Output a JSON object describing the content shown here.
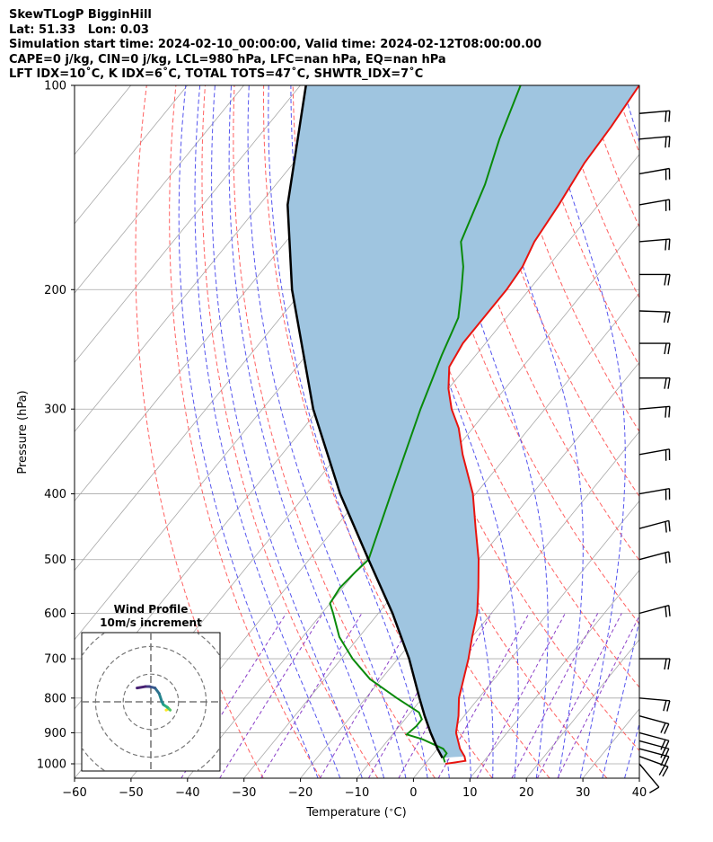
{
  "header": {
    "line1": "SkewTLogP BigginHill",
    "line2": "Lat: 51.33   Lon: 0.03",
    "line3": "Simulation start time: 2024-02-10_00:00:00, Valid time: 2024-02-12T08:00:00.00",
    "line4": "CAPE=0 j/kg, CIN=0 j/kg, LCL=980 hPa, LFC=nan hPa, EQ=nan hPa",
    "line5": "LFT IDX=10$^\\circ$C, K IDX=6$^\\circ$C, TOTAL TOTS=47$^\\circ$C, SHWTR_IDX=7$^\\circ$C"
  },
  "header_display": {
    "line5": "LFT IDX=10˚C, K IDX=6˚C, TOTAL TOTS=47˚C, SHWTR_IDX=7˚C"
  },
  "colors": {
    "temperature": "#e8140f",
    "dewpoint": "#0a8a0a",
    "parcel": "#000000",
    "fill": "#9fc5e0",
    "dry_adiabat": "#ff6060",
    "moist_adiabat": "#5555ee",
    "mixing_ratio": "#8b3fc8",
    "isotherm": "#a8a8a8"
  },
  "chart_data": {
    "type": "line",
    "title": "SkewTLogP BigginHill",
    "xlabel": "Temperature ($^\\circ$C)",
    "ylabel": "Pressure (hPa)",
    "xlim": [
      -60,
      40
    ],
    "ylim": [
      1050,
      100
    ],
    "x_ticks": [
      -60,
      -50,
      -40,
      -30,
      -20,
      -10,
      0,
      10,
      20,
      30,
      40
    ],
    "y_ticks": [
      100,
      200,
      300,
      400,
      500,
      600,
      700,
      800,
      900,
      1000
    ],
    "y_scale": "log",
    "grid": true,
    "series": [
      {
        "key": "temperature",
        "points": [
          [
            1000,
            3.6
          ],
          [
            990,
            6.7
          ],
          [
            975,
            5.9
          ],
          [
            950,
            4.0
          ],
          [
            900,
            1.0
          ],
          [
            850,
            -1.0
          ],
          [
            800,
            -3.5
          ],
          [
            700,
            -7.5
          ],
          [
            650,
            -10.0
          ],
          [
            600,
            -12.5
          ],
          [
            550,
            -16.0
          ],
          [
            500,
            -20.0
          ],
          [
            450,
            -25.0
          ],
          [
            400,
            -30.5
          ],
          [
            350,
            -38.0
          ],
          [
            320,
            -42.5
          ],
          [
            300,
            -46.5
          ],
          [
            280,
            -50.0
          ],
          [
            260,
            -53.0
          ],
          [
            240,
            -54.0
          ],
          [
            220,
            -54.0
          ],
          [
            200,
            -54.0
          ],
          [
            185,
            -54.5
          ],
          [
            170,
            -56.0
          ],
          [
            150,
            -57.0
          ],
          [
            130,
            -58.5
          ],
          [
            115,
            -59.0
          ],
          [
            100,
            -60.0
          ]
        ]
      },
      {
        "key": "dewpoint",
        "points": [
          [
            995,
            3.3
          ],
          [
            980,
            2.4
          ],
          [
            965,
            2.3
          ],
          [
            950,
            1.0
          ],
          [
            920,
            -4.0
          ],
          [
            905,
            -7.5
          ],
          [
            880,
            -7.0
          ],
          [
            860,
            -7.0
          ],
          [
            840,
            -8.5
          ],
          [
            800,
            -14.5
          ],
          [
            750,
            -22.0
          ],
          [
            700,
            -28.0
          ],
          [
            650,
            -33.5
          ],
          [
            600,
            -38.0
          ],
          [
            580,
            -40.0
          ],
          [
            550,
            -40.5
          ],
          [
            520,
            -40.0
          ],
          [
            500,
            -39.5
          ],
          [
            400,
            -45.0
          ],
          [
            300,
            -52.0
          ],
          [
            250,
            -56.0
          ],
          [
            220,
            -58.5
          ],
          [
            200,
            -62.0
          ],
          [
            185,
            -65.0
          ],
          [
            170,
            -69.0
          ],
          [
            140,
            -73.0
          ],
          [
            120,
            -77.0
          ],
          [
            100,
            -81.0
          ]
        ]
      },
      {
        "key": "parcel",
        "points": [
          [
            980,
            2.2
          ],
          [
            950,
            0.0
          ],
          [
            900,
            -3.5
          ],
          [
            850,
            -7.0
          ],
          [
            800,
            -10.5
          ],
          [
            700,
            -18.0
          ],
          [
            600,
            -27.5
          ],
          [
            500,
            -39.5
          ],
          [
            400,
            -54.0
          ],
          [
            300,
            -71.0
          ],
          [
            200,
            -92.0
          ],
          [
            150,
            -105.0
          ],
          [
            100,
            -119.0
          ]
        ]
      }
    ],
    "wind_barbs": [
      {
        "p": 1000,
        "speed_kt": 10,
        "dir": 220
      },
      {
        "p": 975,
        "speed_kt": 20,
        "dir": 250
      },
      {
        "p": 950,
        "speed_kt": 20,
        "dir": 255
      },
      {
        "p": 925,
        "speed_kt": 20,
        "dir": 255
      },
      {
        "p": 900,
        "speed_kt": 20,
        "dir": 255
      },
      {
        "p": 850,
        "speed_kt": 20,
        "dir": 255
      },
      {
        "p": 800,
        "speed_kt": 20,
        "dir": 265
      },
      {
        "p": 700,
        "speed_kt": 20,
        "dir": 270
      },
      {
        "p": 600,
        "speed_kt": 20,
        "dir": 285
      },
      {
        "p": 500,
        "speed_kt": 20,
        "dir": 285
      },
      {
        "p": 450,
        "speed_kt": 20,
        "dir": 285
      },
      {
        "p": 400,
        "speed_kt": 20,
        "dir": 280
      },
      {
        "p": 350,
        "speed_kt": 20,
        "dir": 280
      },
      {
        "p": 300,
        "speed_kt": 20,
        "dir": 275
      },
      {
        "p": 270,
        "speed_kt": 20,
        "dir": 270
      },
      {
        "p": 240,
        "speed_kt": 20,
        "dir": 270
      },
      {
        "p": 215,
        "speed_kt": 20,
        "dir": 268
      },
      {
        "p": 190,
        "speed_kt": 20,
        "dir": 270
      },
      {
        "p": 170,
        "speed_kt": 20,
        "dir": 275
      },
      {
        "p": 150,
        "speed_kt": 20,
        "dir": 280
      },
      {
        "p": 135,
        "speed_kt": 20,
        "dir": 280
      },
      {
        "p": 120,
        "speed_kt": 20,
        "dir": 275
      },
      {
        "p": 110,
        "speed_kt": 20,
        "dir": 275
      }
    ],
    "hodograph": {
      "title_line1": "Wind Profile",
      "title_line2": "10m/s increment",
      "rings_ms": [
        10,
        20,
        30
      ],
      "range_ms": 30,
      "uv": [
        [
          5.5,
          -3.0
        ],
        [
          6.5,
          -2.5
        ],
        [
          6.0,
          -2.0
        ],
        [
          7.0,
          -3.0
        ],
        [
          6.0,
          -2.0
        ],
        [
          4.5,
          -1.0
        ],
        [
          4.0,
          0.0
        ],
        [
          3.0,
          3.0
        ],
        [
          1.5,
          5.0
        ],
        [
          -0.5,
          5.5
        ],
        [
          -2.0,
          5.5
        ],
        [
          -5.0,
          5.0
        ]
      ]
    }
  }
}
